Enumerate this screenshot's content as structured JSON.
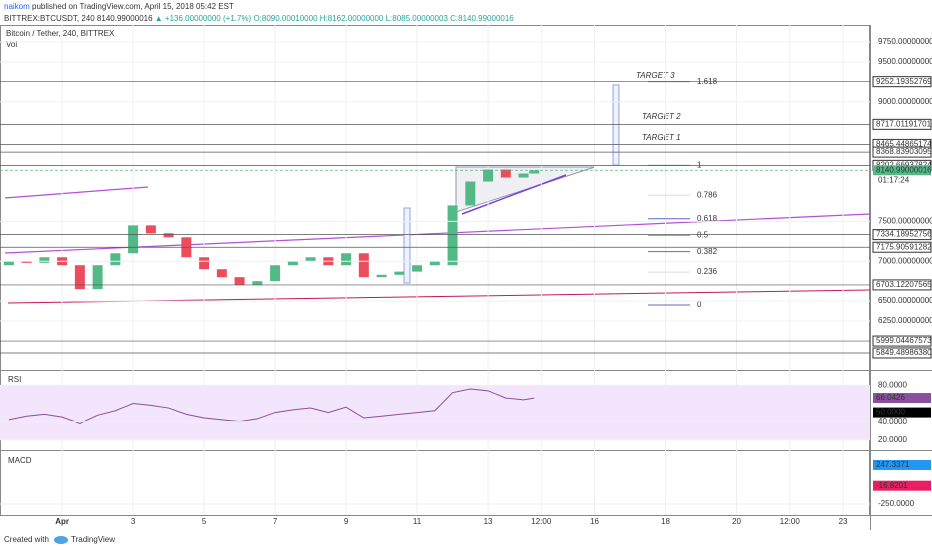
{
  "header": {
    "author": "naikom",
    "published": "published on TradingView.com, April 15, 2018 05:42 EST",
    "symbol": "BITTREX:BTCUSDT, 240",
    "last": "8140.99000016",
    "change": "▲ +136.00000000 (+1.7%)",
    "ohlc": [
      "O:8090.00010000",
      "H:8162.00000000",
      "L:8085.00000003",
      "C:8140.99000016"
    ]
  },
  "chart_data": [
    {
      "type": "candlestick",
      "title": "Bitcoin / Tether, 240, BITTREX",
      "subtitle": "Vol",
      "x": [
        -0.5,
        0,
        0.5,
        1,
        1.5,
        2,
        2.5,
        3,
        3.5,
        4,
        4.5,
        5,
        5.5,
        6,
        6.5,
        7,
        7.5,
        8,
        8.5,
        9,
        9.5,
        10,
        10.5,
        11,
        11.5,
        12,
        12.5,
        13,
        13.5,
        14,
        14.3
      ],
      "open": [
        6950,
        7000,
        6980,
        7050,
        6950,
        6650,
        6950,
        7100,
        7450,
        7350,
        7300,
        7050,
        6900,
        6800,
        6700,
        6750,
        6950,
        7000,
        7050,
        6950,
        7100,
        6800,
        6830,
        6870,
        6950,
        6950,
        7700,
        8000,
        8150,
        8050,
        8100
      ],
      "close": [
        7000,
        6980,
        7050,
        6950,
        6650,
        6950,
        7100,
        7450,
        7350,
        7300,
        7050,
        6900,
        6800,
        6700,
        6750,
        6950,
        7000,
        7050,
        6950,
        7100,
        6800,
        6830,
        6870,
        6950,
        7000,
        7700,
        8000,
        8150,
        8050,
        8100,
        8140
      ],
      "up_color": "#53b987",
      "down_color": "#eb4d5c",
      "xlim": [
        -0.75,
        23.76
      ],
      "xticks": [
        {
          "value": 1,
          "label": "Apr"
        },
        3,
        5,
        7,
        9,
        11,
        13,
        {
          "value": 14.5,
          "label": "12:00"
        },
        16,
        18,
        20,
        {
          "value": 21.5,
          "label": "12:00"
        },
        23
      ],
      "ylim": [
        5636,
        9963
      ],
      "yticks": [
        {
          "value": 6250,
          "label": "6250.00000000"
        },
        {
          "value": 6500,
          "label": "6500.00000000"
        },
        {
          "value": 7000,
          "label": "7000.00000000"
        },
        {
          "value": 7500,
          "label": "7500.00000000"
        },
        {
          "value": 9000,
          "label": "9000.00000000"
        },
        {
          "value": 9500,
          "label": "9500.00000000"
        },
        {
          "value": 9750,
          "label": "9750.00000000"
        }
      ],
      "price_labels": [
        {
          "value": 9252.19352769,
          "label": "9252.19352769",
          "color": "#ffffff"
        },
        {
          "value": 8717.01191701,
          "label": "8717.01191701",
          "color": "#ffffff"
        },
        {
          "value": 8465.44865174,
          "label": "8465.44865174",
          "color": "#ffffff"
        },
        {
          "value": 8368.83903095,
          "label": "8368.83903095",
          "color": "#ffffff"
        },
        {
          "value": 8202.66937824,
          "label": "8202.66937824",
          "color": "#ffffff"
        },
        {
          "value": 8140.99000016,
          "label": "8140.99000016",
          "color": "#53b987"
        },
        {
          "value": 7334.18952756,
          "label": "7334.18952756",
          "color": "#ffffff"
        },
        {
          "value": 7175.90591282,
          "label": "7175.90591282",
          "color": "#ffffff"
        },
        {
          "value": 6703.12207565,
          "label": "6703.12207565",
          "color": "#ffffff"
        },
        {
          "value": 5999.04467573,
          "label": "5999.04467573",
          "color": "#ffffff"
        },
        {
          "value": 5849.4898638,
          "label": "5849.48986380",
          "color": "#ffffff"
        }
      ],
      "countdown": "01:17:24",
      "fib_levels": [
        {
          "value": 9252.19,
          "label": "1.618"
        },
        {
          "value": 8202.67,
          "label": "1"
        },
        {
          "value": 7827,
          "label": "0.786"
        },
        {
          "value": 7533,
          "label": "0.618"
        },
        {
          "value": 7327,
          "label": "0.5"
        },
        {
          "value": 7120,
          "label": "0.382"
        },
        {
          "value": 6864,
          "label": "0.236"
        },
        {
          "value": 6451,
          "label": "0"
        }
      ],
      "annotations": [
        "TARGET 3",
        "TARGET 2",
        "TARGET 1"
      ]
    },
    {
      "type": "line",
      "title": "RSI",
      "x": [
        -0.5,
        0,
        0.5,
        1,
        1.5,
        2,
        2.5,
        3,
        3.5,
        4,
        4.5,
        5,
        5.5,
        6,
        6.5,
        7,
        7.5,
        8,
        8.5,
        9,
        9.5,
        10,
        10.5,
        11,
        11.5,
        12,
        12.5,
        13,
        13.5,
        14,
        14.3
      ],
      "values": [
        42,
        46,
        48,
        45,
        38,
        47,
        52,
        60,
        58,
        55,
        48,
        44,
        42,
        40,
        43,
        50,
        53,
        55,
        50,
        56,
        44,
        46,
        48,
        50,
        52,
        72,
        76,
        74,
        66,
        64,
        66
      ],
      "color": "#8a4f9e",
      "ylim": [
        8.7,
        97
      ],
      "yticks": [
        {
          "value": 20,
          "label": "20.0000"
        },
        {
          "value": 40,
          "label": "40.0000"
        },
        {
          "value": 80,
          "label": "80.0000"
        }
      ],
      "price_labels": [
        {
          "value": 66.0426,
          "label": "66.0426",
          "color": "#8a4f9e"
        },
        {
          "value": 50,
          "label": "50.0000",
          "color": "#000000"
        }
      ]
    },
    {
      "type": "macd",
      "title": "MACD",
      "ylim": [
        -390,
        438
      ],
      "yticks": [
        {
          "value": -250,
          "label": "-250.0000"
        }
      ],
      "price_labels": [
        {
          "value": 247.3371,
          "label": "247.3371",
          "color": "#2196f3"
        },
        {
          "value": -16.8201,
          "label": "-16.8201",
          "color": "#e91e63"
        }
      ]
    }
  ],
  "footer": {
    "created": "Created with",
    "brand": "TradingView"
  }
}
